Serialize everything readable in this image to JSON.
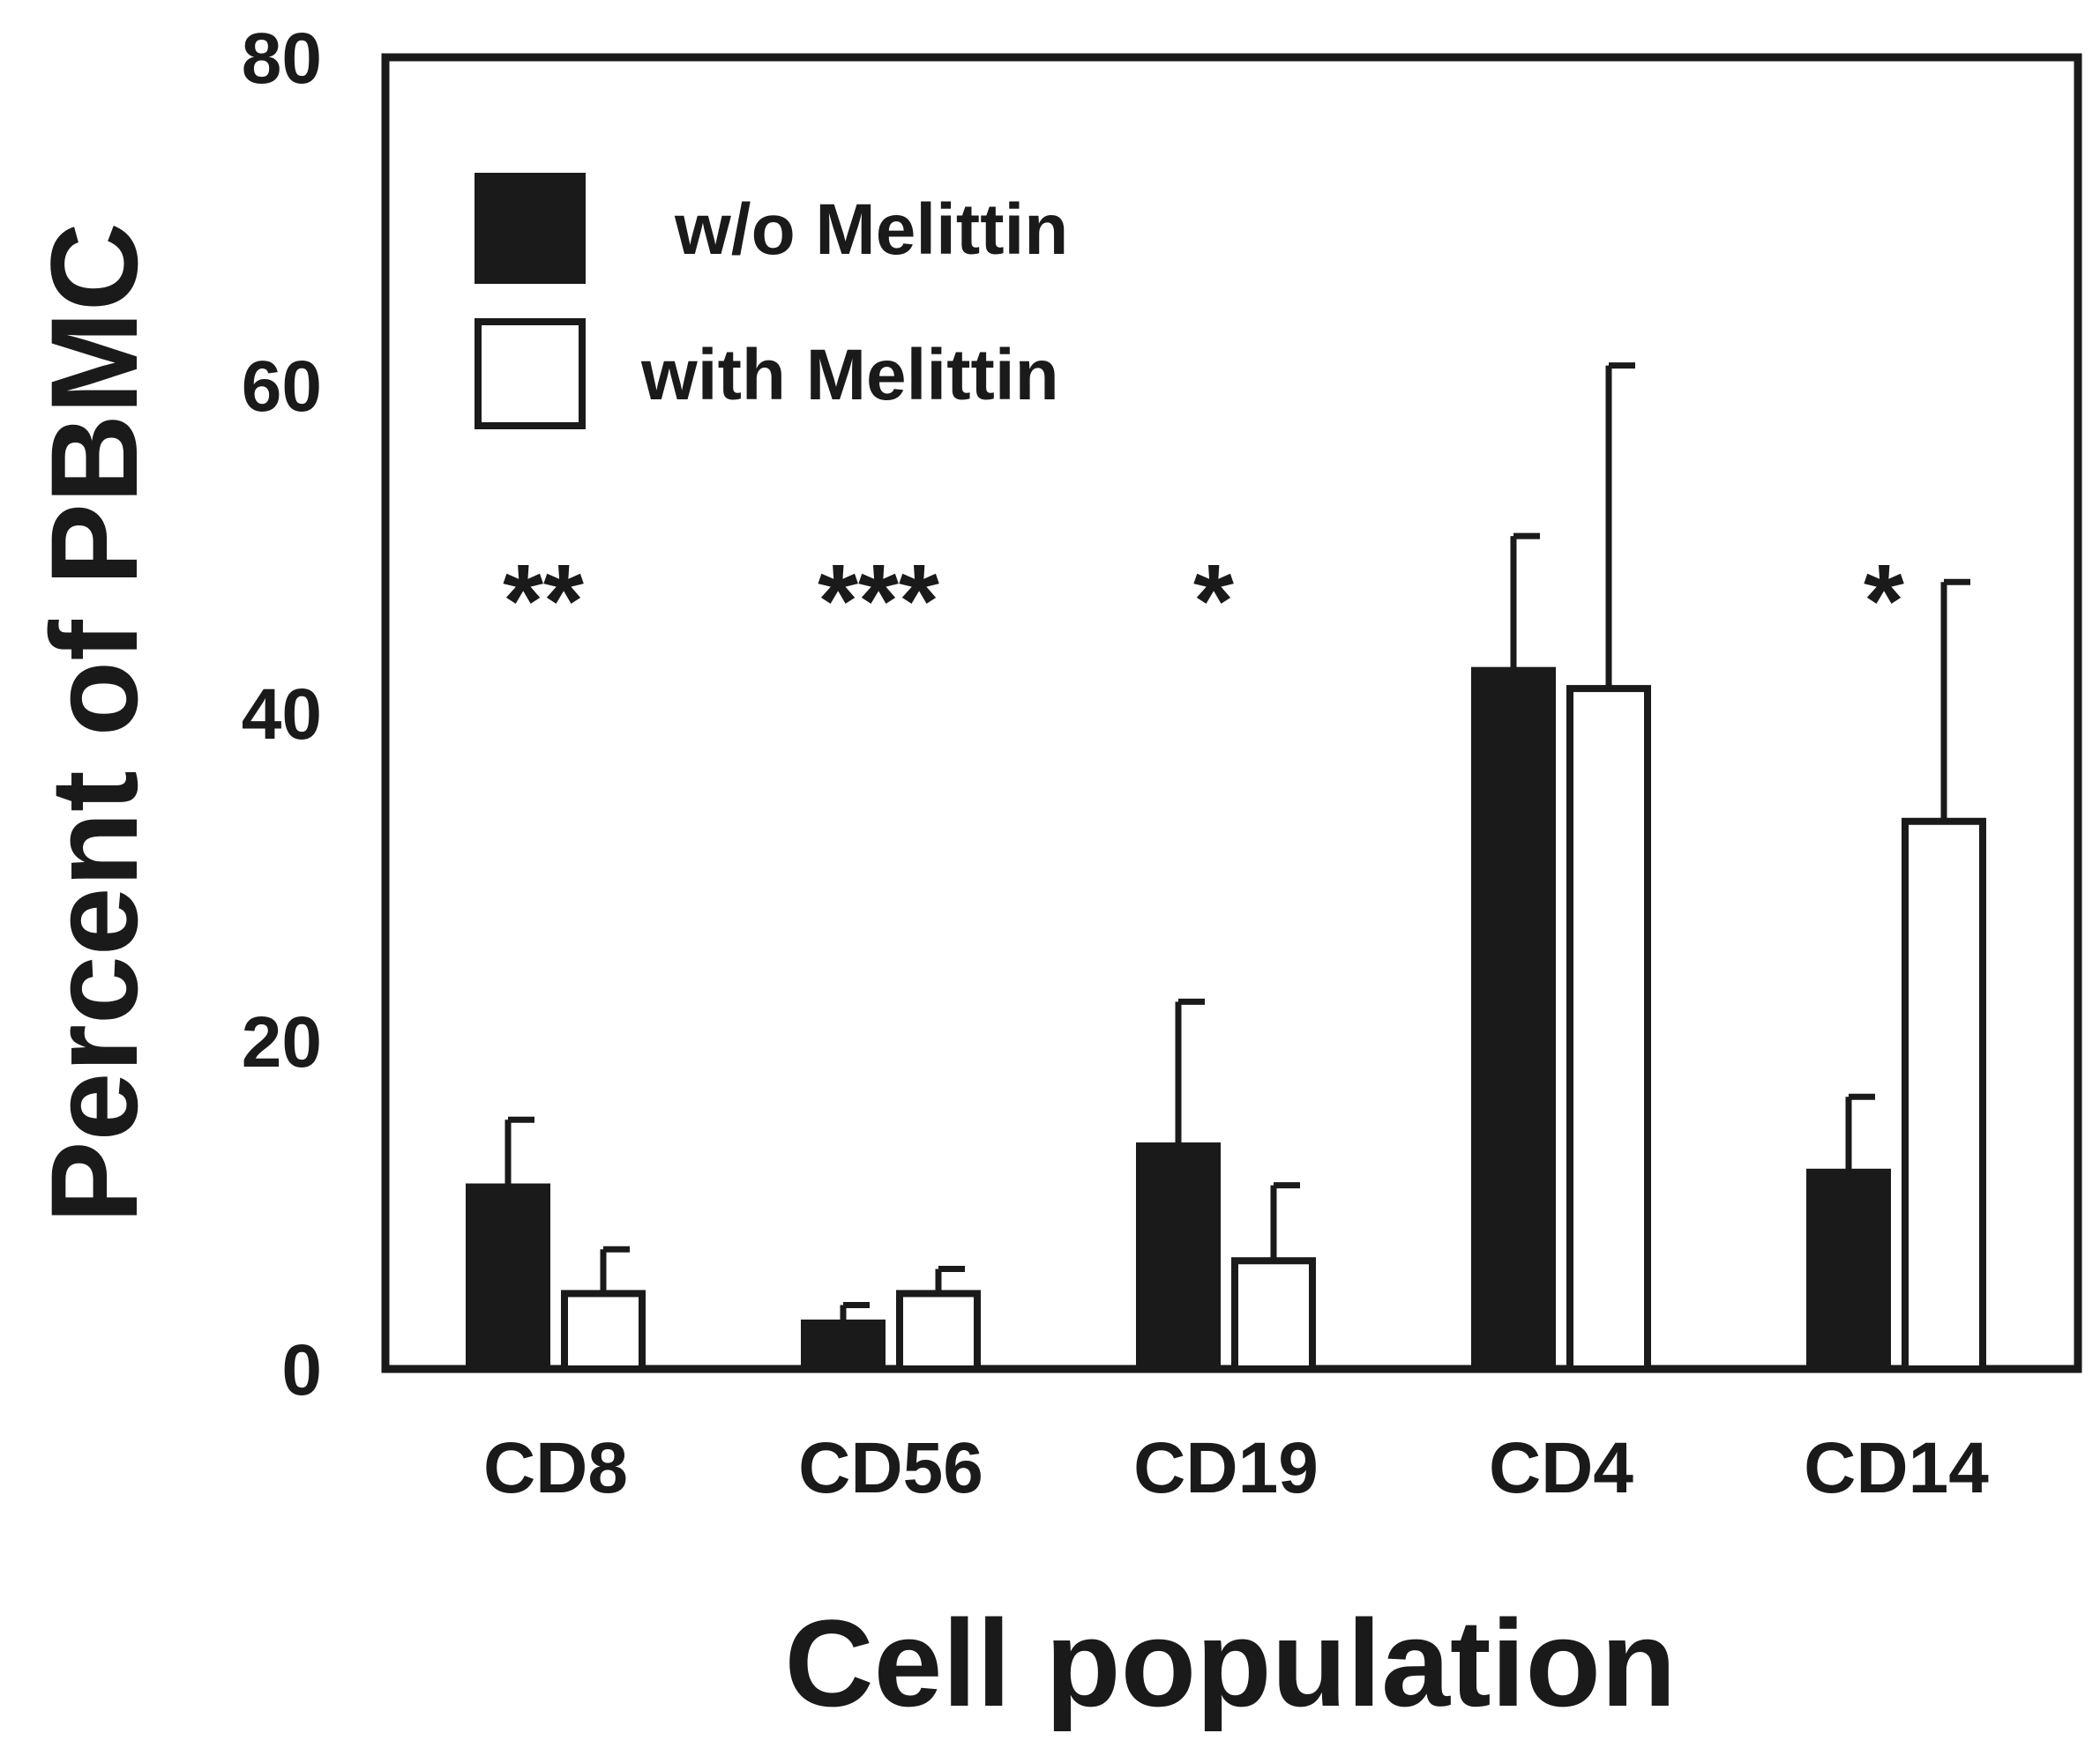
{
  "chart_data": {
    "type": "bar",
    "title": "",
    "xlabel": "Cell population",
    "ylabel": "Percent of PBMC",
    "ylim": [
      0,
      80
    ],
    "yticks": [
      0,
      20,
      40,
      60,
      80
    ],
    "categories": [
      "CD8",
      "CD56",
      "CD19",
      "CD4",
      "CD14"
    ],
    "series": [
      {
        "name": "w/o Melittin",
        "fill": "#1a1a1a",
        "values": [
          11.1,
          2.8,
          13.6,
          42.6,
          12.0
        ],
        "errors": [
          4.1,
          1.1,
          8.8,
          8.2,
          4.6
        ]
      },
      {
        "name": "with Melittin",
        "fill": "#ffffff",
        "values": [
          4.6,
          4.6,
          6.6,
          41.5,
          33.4
        ],
        "errors": [
          2.7,
          1.5,
          4.6,
          19.7,
          14.6
        ]
      }
    ],
    "significance": [
      "**",
      "***",
      "*",
      "",
      "*"
    ],
    "legend_position": "top-left",
    "grid": false,
    "colors": {
      "ink": "#1a1a1a",
      "background": "#ffffff"
    }
  }
}
